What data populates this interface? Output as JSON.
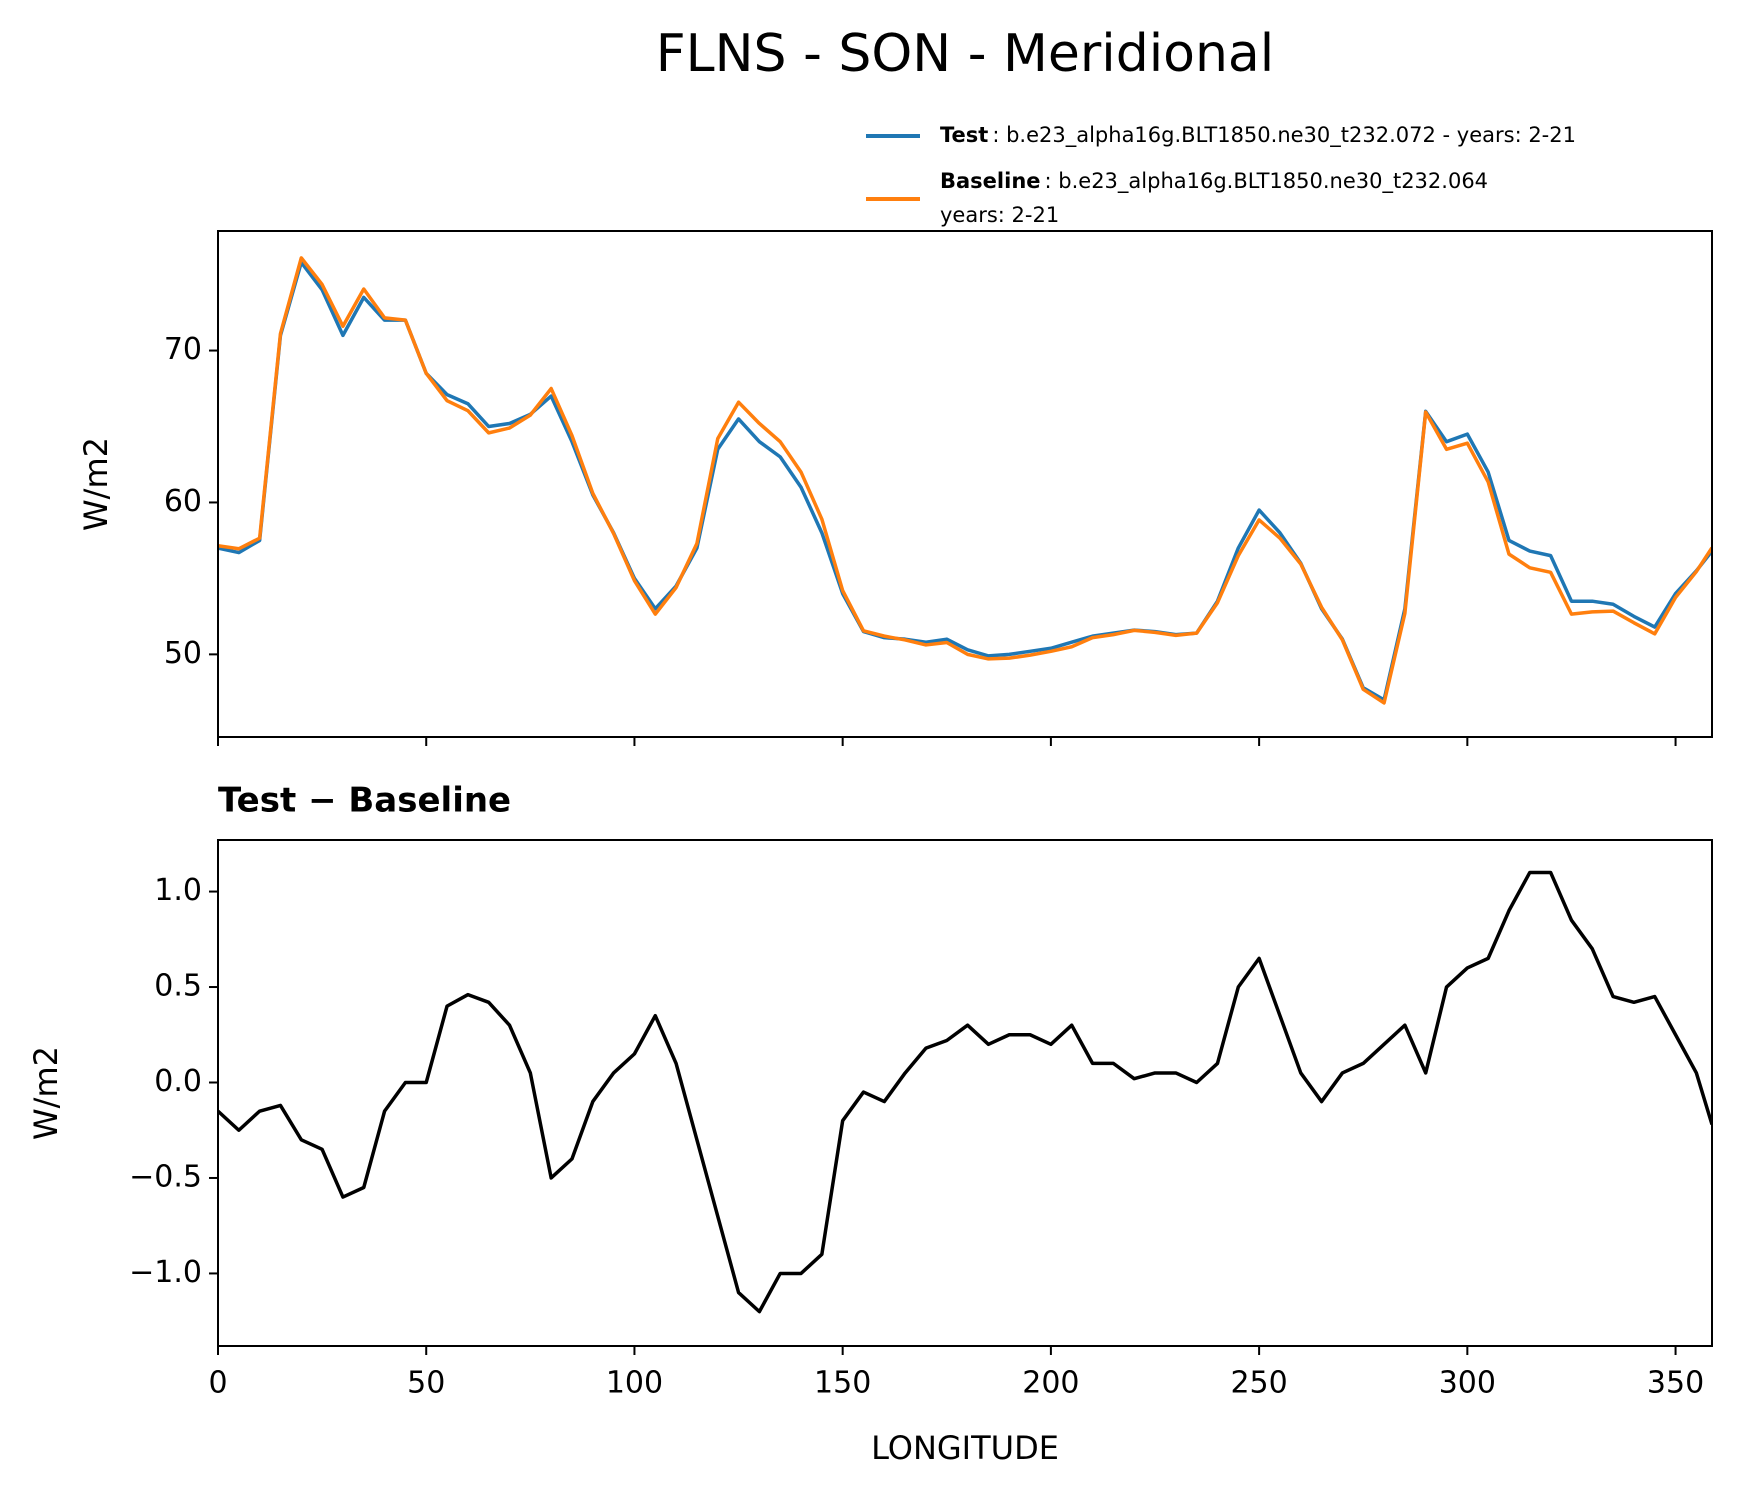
{
  "chart_data": [
    {
      "type": "line",
      "title": "FLNS - SON - Meridional",
      "ylabel": "W/m2",
      "xlim": [
        0,
        358.75
      ],
      "ylim": [
        44.56,
        77.87
      ],
      "yticks": [
        50,
        60,
        70
      ],
      "sharex": true,
      "x": [
        0,
        5,
        10,
        15,
        20,
        25,
        30,
        35,
        40,
        45,
        50,
        55,
        60,
        65,
        70,
        75,
        80,
        85,
        90,
        95,
        100,
        105,
        110,
        115,
        120,
        125,
        130,
        135,
        140,
        145,
        150,
        155,
        160,
        165,
        170,
        175,
        180,
        185,
        190,
        195,
        200,
        205,
        210,
        215,
        220,
        225,
        230,
        235,
        240,
        245,
        250,
        255,
        260,
        265,
        270,
        275,
        280,
        285,
        290,
        295,
        300,
        305,
        310,
        315,
        320,
        325,
        330,
        335,
        340,
        345,
        350,
        355,
        358.75
      ],
      "series": [
        {
          "name": "Test",
          "legend_text": [
            ": b.e23_alpha16g.BLT1850.ne30_t232.072 - years: 2-21"
          ],
          "color": "#1f77b4",
          "values": [
            57.0,
            56.7,
            57.5,
            71,
            75.8,
            74,
            71,
            73.5,
            72,
            72,
            68.5,
            67.1,
            66.5,
            65.0,
            65.2,
            65.8,
            67.0,
            64,
            60.5,
            58,
            55,
            53,
            54.5,
            57,
            63.5,
            65.5,
            64,
            63,
            61,
            58,
            54,
            51.5,
            51.1,
            51,
            50.8,
            51,
            50.3,
            49.9,
            50,
            50.2,
            50.4,
            50.8,
            51.2,
            51.4,
            51.6,
            51.5,
            51.3,
            51.4,
            53.5,
            57,
            59.5,
            58,
            56,
            53,
            51,
            47.8,
            47,
            53,
            66,
            64,
            64.5,
            62,
            57.5,
            56.8,
            56.5,
            53.5,
            53.5,
            53.3,
            52.5,
            51.8,
            54,
            55.5,
            56.8
          ]
        },
        {
          "name": "Baseline",
          "legend_text": [
            ": b.e23_alpha16g.BLT1850.ne30_t232.064",
            "years: 2-21"
          ],
          "color": "#ff7f0e",
          "values": [
            57.15,
            56.95,
            57.65,
            71.12,
            76.1,
            74.35,
            71.6,
            74.05,
            72.15,
            72.0,
            68.5,
            66.7,
            66.04,
            64.58,
            64.9,
            65.75,
            67.5,
            64.4,
            60.6,
            57.95,
            54.85,
            52.65,
            54.4,
            57.3,
            64.2,
            66.6,
            65.2,
            64.0,
            62.0,
            58.9,
            54.2,
            51.55,
            51.2,
            50.95,
            50.62,
            50.78,
            50.0,
            49.7,
            49.75,
            49.95,
            50.2,
            50.5,
            51.1,
            51.3,
            51.58,
            51.45,
            51.25,
            51.4,
            53.4,
            56.5,
            58.85,
            57.65,
            55.95,
            53.1,
            50.95,
            47.7,
            46.8,
            52.7,
            65.95,
            63.5,
            63.9,
            61.35,
            56.6,
            55.7,
            55.4,
            52.65,
            52.8,
            52.85,
            52.08,
            51.35,
            53.75,
            55.45,
            57.02
          ]
        }
      ]
    },
    {
      "type": "line",
      "title": "Test − Baseline",
      "ylabel": "W/m2",
      "xlabel": "LONGITUDE",
      "xlim": [
        0,
        358.75
      ],
      "ylim": [
        -1.38,
        1.27
      ],
      "xticks": [
        0,
        50,
        100,
        150,
        200,
        250,
        300,
        350
      ],
      "yticks": [
        {
          "value": -1.0,
          "label": "−1.0"
        },
        {
          "value": -0.5,
          "label": "−0.5"
        },
        {
          "value": 0,
          "label": "0.0"
        },
        {
          "value": 0.5,
          "label": "0.5"
        },
        {
          "value": 1.0,
          "label": "1.0"
        }
      ],
      "x": [
        0,
        5,
        10,
        15,
        20,
        25,
        30,
        35,
        40,
        45,
        50,
        55,
        60,
        65,
        70,
        75,
        80,
        85,
        90,
        95,
        100,
        105,
        110,
        115,
        120,
        125,
        130,
        135,
        140,
        145,
        150,
        155,
        160,
        165,
        170,
        175,
        180,
        185,
        190,
        195,
        200,
        205,
        210,
        215,
        220,
        225,
        230,
        235,
        240,
        245,
        250,
        255,
        260,
        265,
        270,
        275,
        280,
        285,
        290,
        295,
        300,
        305,
        310,
        315,
        320,
        325,
        330,
        335,
        340,
        345,
        350,
        355,
        358.75
      ],
      "series": [
        {
          "color": "#000000",
          "values": [
            -0.15,
            -0.25,
            -0.15,
            -0.12,
            -0.3,
            -0.35,
            -0.6,
            -0.55,
            -0.15,
            0.0,
            0.0,
            0.4,
            0.46,
            0.42,
            0.3,
            0.05,
            -0.5,
            -0.4,
            -0.1,
            0.05,
            0.15,
            0.35,
            0.1,
            -0.3,
            -0.7,
            -1.1,
            -1.2,
            -1.0,
            -1.0,
            -0.9,
            -0.2,
            -0.05,
            -0.1,
            0.05,
            0.18,
            0.22,
            0.3,
            0.2,
            0.25,
            0.25,
            0.2,
            0.3,
            0.1,
            0.1,
            0.02,
            0.05,
            0.05,
            0.0,
            0.1,
            0.5,
            0.65,
            0.35,
            0.05,
            -0.1,
            0.05,
            0.1,
            0.2,
            0.3,
            0.05,
            0.5,
            0.6,
            0.65,
            0.9,
            1.1,
            1.1,
            0.85,
            0.7,
            0.45,
            0.42,
            0.45,
            0.25,
            0.05,
            -0.22
          ]
        }
      ]
    }
  ]
}
